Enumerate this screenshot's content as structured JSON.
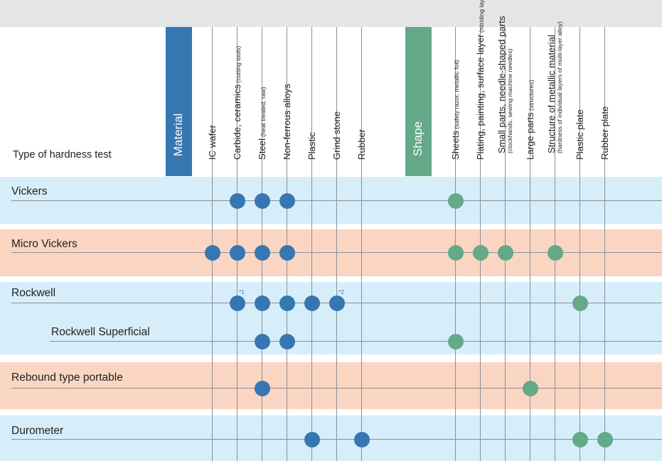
{
  "colors": {
    "material_blue": "#3677b1",
    "shape_green": "#63a98a",
    "row_blue": "#d6eefa",
    "row_orange": "#fad6c2",
    "top_gray": "#e4e5e6"
  },
  "header": {
    "corner_label": "Type of hardness test"
  },
  "categories": [
    {
      "key": "material",
      "label": "Material"
    },
    {
      "key": "shape",
      "label": "Shape"
    }
  ],
  "columns": [
    {
      "key": "ic-wafer",
      "category": "material",
      "label": "IC wafer",
      "note": ""
    },
    {
      "key": "carbide-ceramics",
      "category": "material",
      "label": "Carbide, ceramics",
      "note": "(cutting tools)"
    },
    {
      "key": "steel",
      "category": "material",
      "label": "Steel",
      "note": "(heat treated, raw)"
    },
    {
      "key": "non-ferrous-alloys",
      "category": "material",
      "label": "Non-ferrous alloys",
      "note": ""
    },
    {
      "key": "plastic",
      "category": "material",
      "label": "Plastic",
      "note": ""
    },
    {
      "key": "grind-stone",
      "category": "material",
      "label": "Grind stone",
      "note": ""
    },
    {
      "key": "rubber",
      "category": "material",
      "label": "Rubber",
      "note": ""
    },
    {
      "key": "sheets",
      "category": "shape",
      "label": "Sheets",
      "note": "(safety razor, metallic foil)"
    },
    {
      "key": "plating",
      "category": "shape",
      "label": "Plating, painting, surface layer",
      "note": "(nitriding layer)"
    },
    {
      "key": "small-parts",
      "category": "shape",
      "label": "Small parts, needle-shaped parts",
      "note": "(clockhands, sewing machine needles)"
    },
    {
      "key": "large-parts",
      "category": "shape",
      "label": "Large parts",
      "note": "(structures)"
    },
    {
      "key": "structure-metallic",
      "category": "shape",
      "label": "Structure of metallic material",
      "note": "(hardness of individual layers of multi-layer alloy)"
    },
    {
      "key": "plastic-plate",
      "category": "shape",
      "label": "Plastic plate",
      "note": ""
    },
    {
      "key": "rubber-plate",
      "category": "shape",
      "label": "Rubber plate",
      "note": ""
    }
  ],
  "rows": [
    {
      "key": "vickers",
      "label": "Vickers",
      "group": "blue",
      "indent": false,
      "marks": [
        "carbide-ceramics",
        "steel",
        "non-ferrous-alloys",
        "sheets"
      ],
      "notes": []
    },
    {
      "key": "micro-vickers",
      "label": "Micro Vickers",
      "group": "orange",
      "indent": false,
      "marks": [
        "ic-wafer",
        "carbide-ceramics",
        "steel",
        "non-ferrous-alloys",
        "sheets",
        "plating",
        "small-parts",
        "structure-metallic"
      ],
      "notes": []
    },
    {
      "key": "rockwell",
      "label": "Rockwell",
      "group": "blue",
      "indent": false,
      "marks": [
        "carbide-ceramics",
        "steel",
        "non-ferrous-alloys",
        "plastic",
        "grind-stone",
        "plastic-plate"
      ],
      "notes": [
        {
          "column": "carbide-ceramics",
          "text": "*1"
        },
        {
          "column": "grind-stone",
          "text": "*2"
        }
      ]
    },
    {
      "key": "rockwell-superficial",
      "label": "Rockwell Superficial",
      "group": "blue",
      "indent": true,
      "marks": [
        "steel",
        "non-ferrous-alloys",
        "sheets"
      ],
      "notes": []
    },
    {
      "key": "rebound",
      "label": "Rebound type portable",
      "group": "orange",
      "indent": false,
      "marks": [
        "steel",
        "large-parts"
      ],
      "notes": []
    },
    {
      "key": "durometer",
      "label": "Durometer",
      "group": "blue",
      "indent": false,
      "marks": [
        "plastic",
        "rubber",
        "plastic-plate",
        "rubber-plate"
      ],
      "notes": []
    }
  ]
}
